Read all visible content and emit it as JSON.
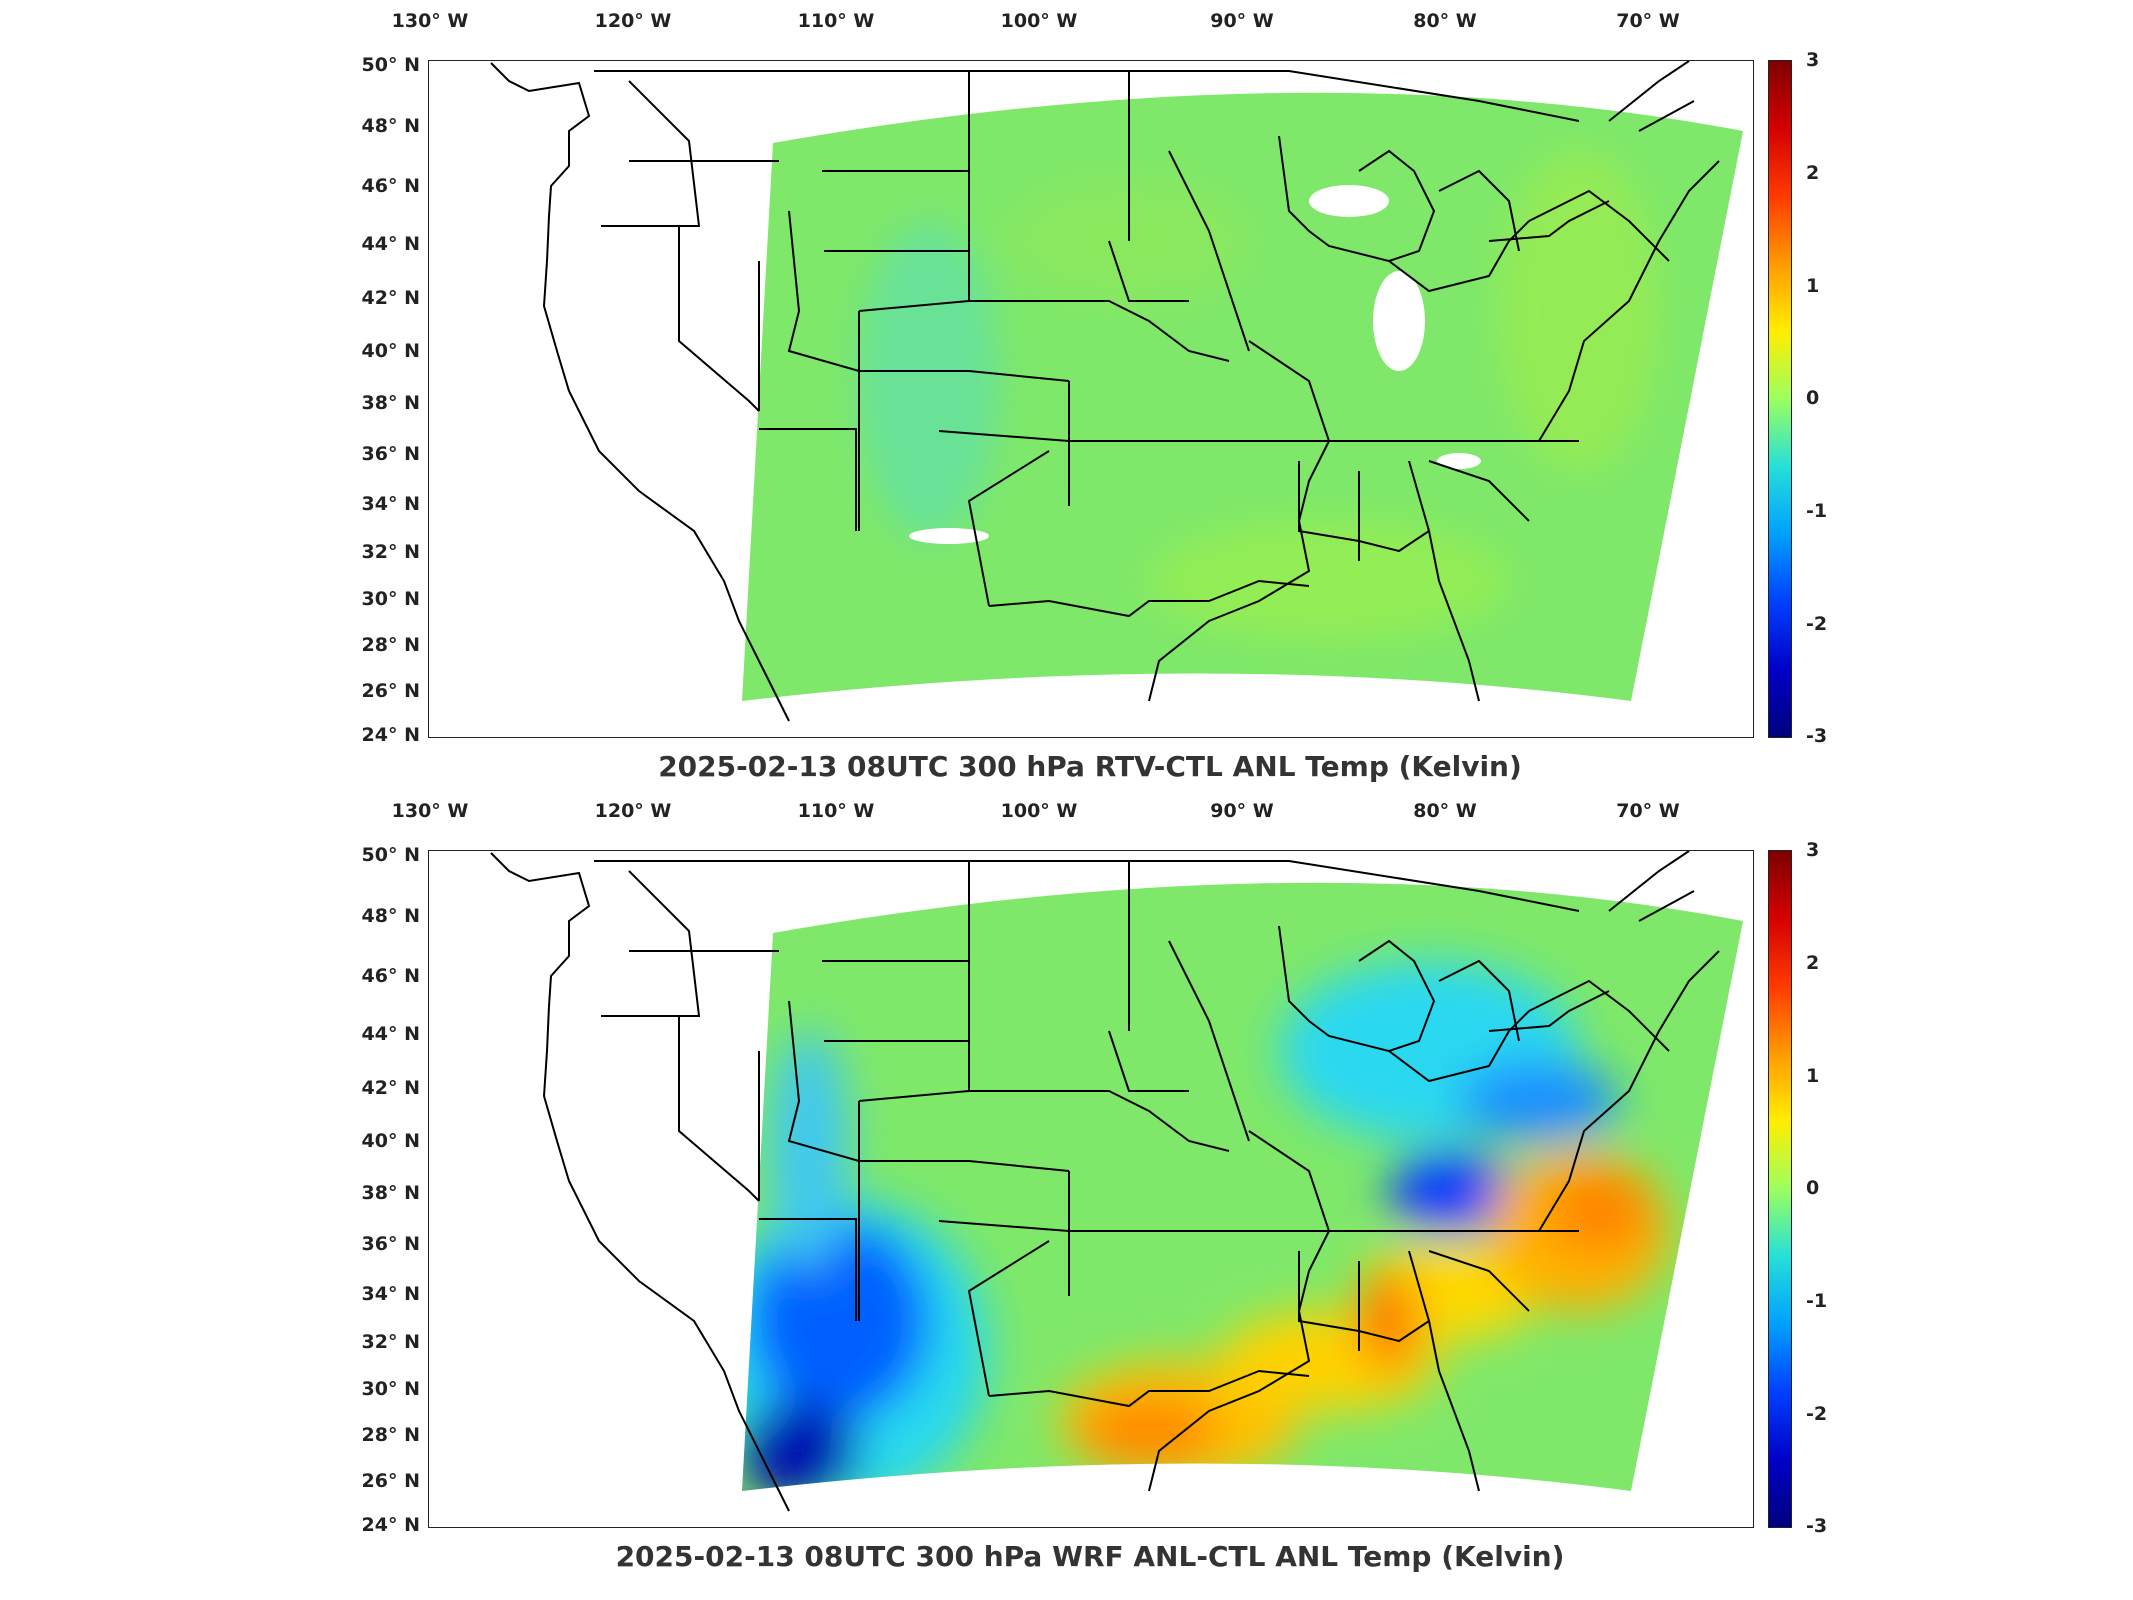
{
  "lon_ticks": [
    "130° W",
    "120° W",
    "110° W",
    "100° W",
    "90° W",
    "80° W",
    "70° W"
  ],
  "lat_ticks": [
    "50° N",
    "48° N",
    "46° N",
    "44° N",
    "42° N",
    "40° N",
    "38° N",
    "36° N",
    "34° N",
    "32° N",
    "30° N",
    "28° N",
    "26° N",
    "24° N"
  ],
  "colorbar": {
    "ticks": [
      "3",
      "2",
      "1",
      "0",
      "-1",
      "-2",
      "-3"
    ],
    "colormap": "jet"
  },
  "panels": [
    {
      "title": "2025-02-13 08UTC 300 hPa RTV-CTL ANL Temp (Kelvin)",
      "field": "near-zero differences"
    },
    {
      "title": "2025-02-13 08UTC 300 hPa WRF ANL-CTL ANL Temp (Kelvin)",
      "field": "negative over southwest and great lakes, positive along gulf and southeast coast"
    }
  ],
  "colors": {
    "neutral": "#7fe86a",
    "cold": "#0a3cff",
    "warm": "#ff9a00",
    "border": "#000000"
  }
}
